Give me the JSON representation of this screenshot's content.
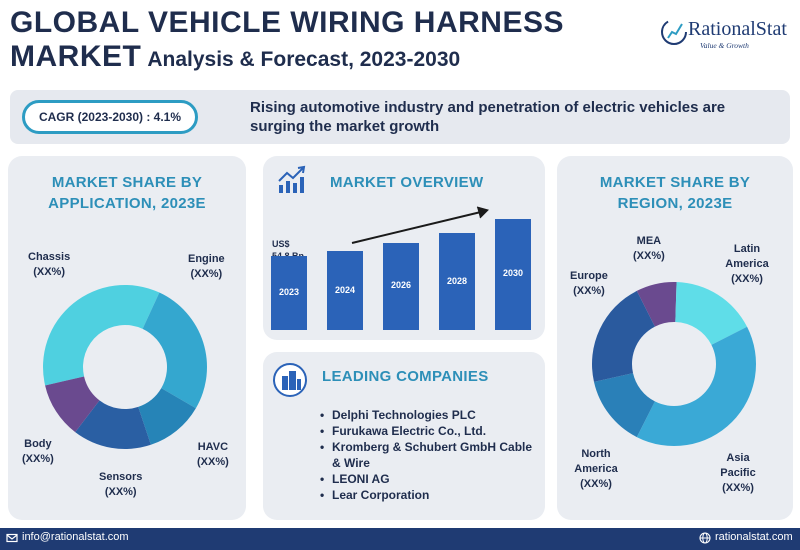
{
  "header": {
    "title_line1": "GLOBAL VEHICLE WIRING HARNESS",
    "title_line2_big": "MARKET",
    "title_line2_small": "Analysis & Forecast, 2023-2030",
    "logo_name": "RationalStat",
    "logo_tagline": "Value & Growth"
  },
  "banner": {
    "cagr": "CAGR (2023-2030) : 4.1%",
    "headline": "Rising automotive industry and penetration of electric vehicles are surging the market growth"
  },
  "application": {
    "title": "MARKET SHARE BY APPLICATION, 2023E",
    "segments": [
      {
        "name": "Chassis",
        "value": "(XX%)",
        "share": 0.355,
        "color": "#4fd0e0"
      },
      {
        "name": "Engine",
        "value": "(XX%)",
        "share": 0.265,
        "color": "#34a7cf"
      },
      {
        "name": "HAVC",
        "value": "(XX%)",
        "share": 0.115,
        "color": "#2684b7"
      },
      {
        "name": "Sensors",
        "value": "(XX%)",
        "share": 0.155,
        "color": "#2a5fa3"
      },
      {
        "name": "Body",
        "value": "(XX%)",
        "share": 0.11,
        "color": "#6a4a8f"
      }
    ]
  },
  "overview": {
    "title": "MARKET OVERVIEW",
    "first_value_label": "US$",
    "first_value": "54.8 Bn",
    "chart_data": {
      "type": "bar",
      "categories": [
        "2023",
        "2024",
        "2026",
        "2028",
        "2030"
      ],
      "values": [
        54.8,
        58.5,
        64.5,
        71.5,
        82.5
      ]
    }
  },
  "companies": {
    "title": "LEADING COMPANIES",
    "items": [
      "Delphi Technologies PLC",
      "Furukawa Electric Co., Ltd.",
      "Kromberg & Schubert GmbH Cable & Wire",
      "LEONI AG",
      "Lear Corporation"
    ]
  },
  "region": {
    "title": "MARKET SHARE BY REGION, 2023E",
    "segments": [
      {
        "name": "MEA",
        "value": "(XX%)",
        "share": 0.08,
        "color": "#6a4a8f"
      },
      {
        "name": "Latin America",
        "value": "(XX%)",
        "share": 0.17,
        "color": "#5fdde8"
      },
      {
        "name": "Asia Pacific",
        "value": "(XX%)",
        "share": 0.4,
        "color": "#3aa9d6"
      },
      {
        "name": "North America",
        "value": "(XX%)",
        "share": 0.14,
        "color": "#2a80b8"
      },
      {
        "name": "Europe",
        "value": "(XX%)",
        "share": 0.21,
        "color": "#2a5a9e"
      }
    ]
  },
  "footer": {
    "email": "info@rationalstat.com",
    "website": "rationalstat.com"
  }
}
